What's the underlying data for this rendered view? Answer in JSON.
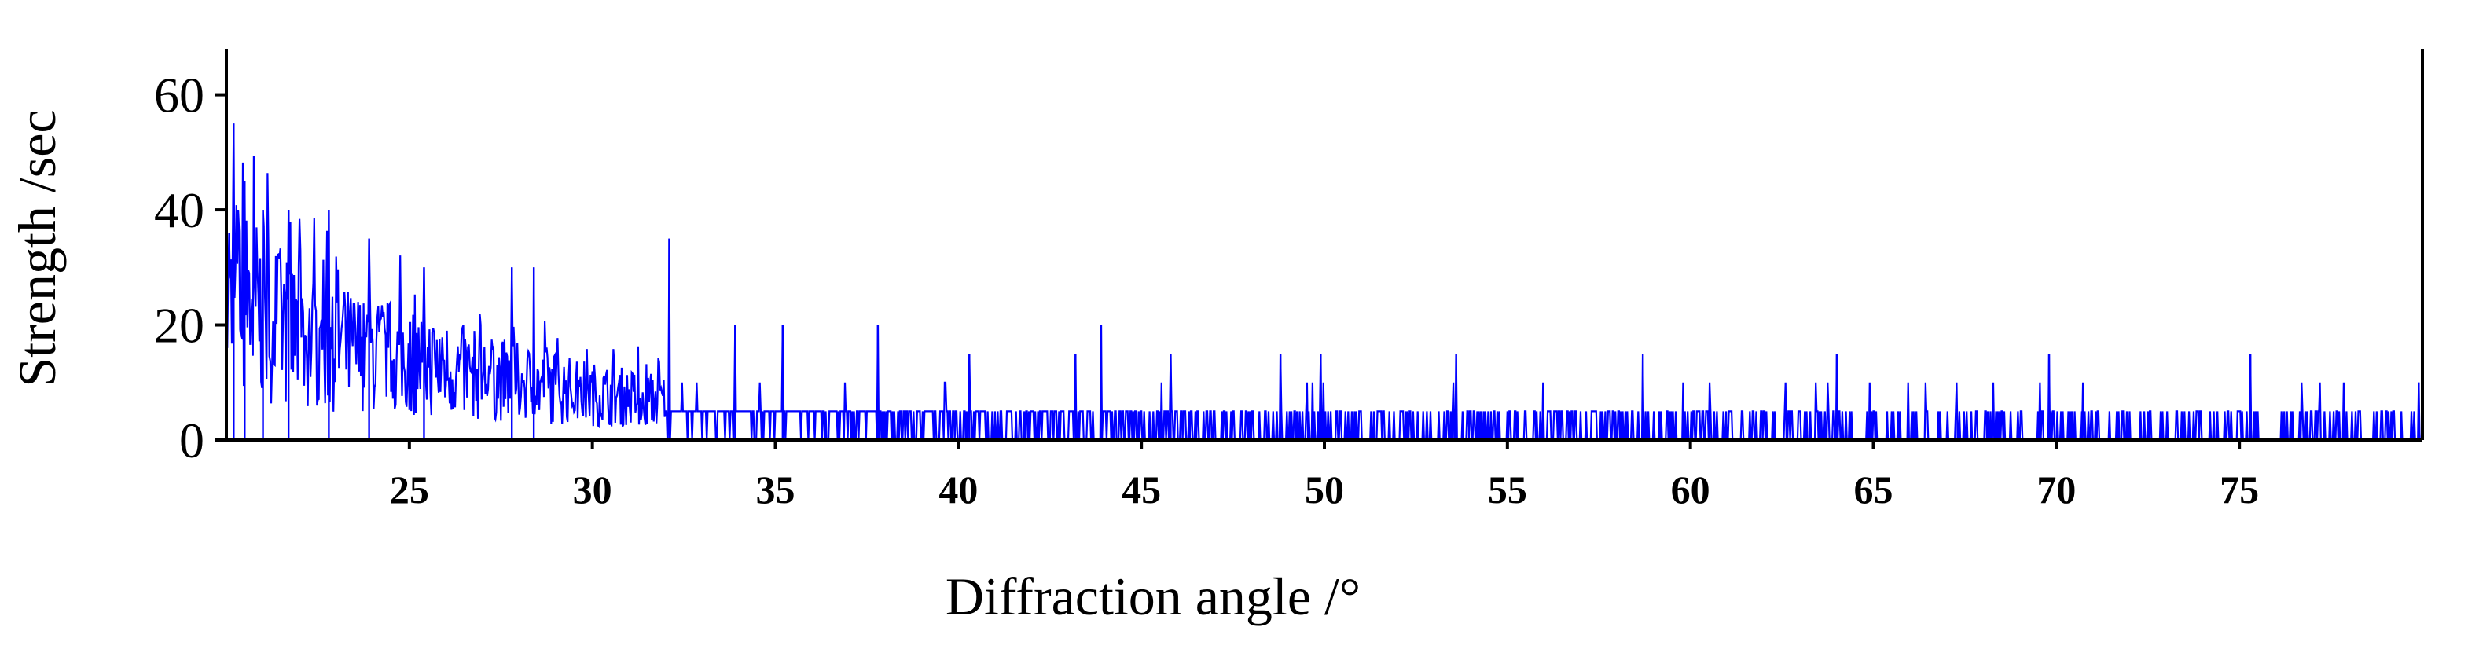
{
  "chart_data": {
    "type": "line",
    "title": "",
    "xlabel": "Diffraction angle /°",
    "ylabel": "Strength /sec",
    "xlim": [
      20,
      80
    ],
    "ylim": [
      0,
      68
    ],
    "x_ticks": [
      25,
      30,
      35,
      40,
      45,
      50,
      55,
      60,
      65,
      70,
      75
    ],
    "x_tick_labels": [
      "25",
      "30",
      "35",
      "40",
      "45",
      "50",
      "55",
      "60",
      "65",
      "70",
      "75"
    ],
    "y_ticks": [
      0,
      20,
      40,
      60
    ],
    "y_tick_labels": [
      "0",
      "20",
      "40",
      "60"
    ],
    "grid": false,
    "legend": "none",
    "series": [
      {
        "color": "#0000ff",
        "x_start": 20,
        "x_end": 80,
        "sampling": "noisy diffraction counts decaying with angle",
        "peaks": [
          {
            "x": 20.2,
            "y": 55
          },
          {
            "x": 20.5,
            "y": 45
          },
          {
            "x": 21.0,
            "y": 40
          },
          {
            "x": 21.7,
            "y": 40
          },
          {
            "x": 22.8,
            "y": 40
          },
          {
            "x": 23.9,
            "y": 35
          },
          {
            "x": 25.4,
            "y": 30
          },
          {
            "x": 27.8,
            "y": 30
          },
          {
            "x": 28.4,
            "y": 30
          },
          {
            "x": 32.1,
            "y": 35
          },
          {
            "x": 33.9,
            "y": 20
          },
          {
            "x": 35.2,
            "y": 20
          },
          {
            "x": 37.8,
            "y": 20
          },
          {
            "x": 40.3,
            "y": 15
          },
          {
            "x": 43.2,
            "y": 15
          },
          {
            "x": 43.9,
            "y": 20
          },
          {
            "x": 45.8,
            "y": 15
          },
          {
            "x": 48.8,
            "y": 15
          },
          {
            "x": 49.9,
            "y": 15
          },
          {
            "x": 53.6,
            "y": 15
          },
          {
            "x": 58.7,
            "y": 15
          },
          {
            "x": 64.0,
            "y": 15
          },
          {
            "x": 69.8,
            "y": 15
          },
          {
            "x": 75.3,
            "y": 15
          },
          {
            "x": 79.9,
            "y": 10
          }
        ],
        "baseline": [
          {
            "x": 20,
            "y": 27
          },
          {
            "x": 21,
            "y": 22
          },
          {
            "x": 22,
            "y": 18
          },
          {
            "x": 23,
            "y": 16
          },
          {
            "x": 25,
            "y": 14
          },
          {
            "x": 27,
            "y": 11
          },
          {
            "x": 30,
            "y": 8
          },
          {
            "x": 35,
            "y": 5
          },
          {
            "x": 40,
            "y": 3
          },
          {
            "x": 50,
            "y": 2
          },
          {
            "x": 60,
            "y": 1.6
          },
          {
            "x": 70,
            "y": 1.4
          },
          {
            "x": 80,
            "y": 1.2
          }
        ]
      }
    ]
  }
}
